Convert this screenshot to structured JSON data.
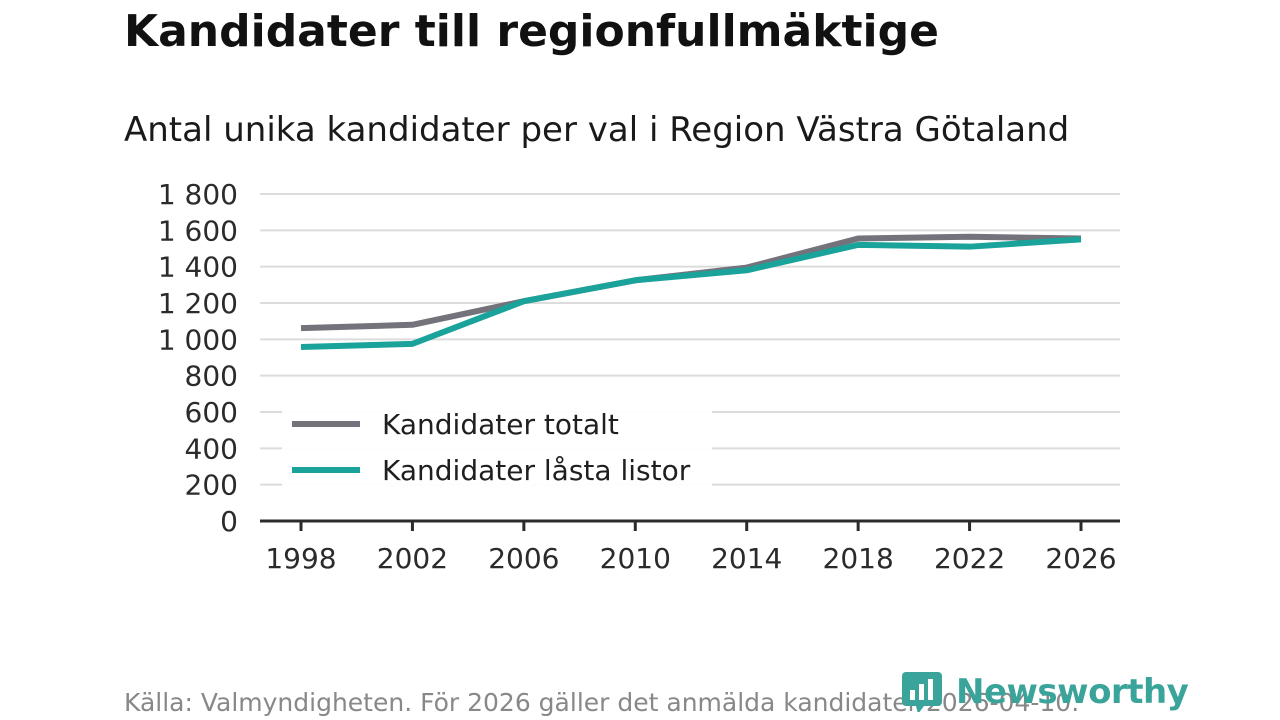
{
  "chart_data": {
    "type": "line",
    "title": "Kandidater till regionfullmäktige",
    "subtitle": "Antal unika kandidater per val i Region Västra Götaland",
    "x": [
      "1998",
      "2002",
      "2006",
      "2010",
      "2014",
      "2018",
      "2022",
      "2026"
    ],
    "ylim": [
      0,
      1800
    ],
    "yticks": [
      0,
      200,
      400,
      600,
      800,
      1000,
      1200,
      1400,
      1600,
      1800
    ],
    "ytick_labels": [
      "0",
      "200",
      "400",
      "600",
      "800",
      "1 000",
      "1 200",
      "1 400",
      "1 600",
      "1 800"
    ],
    "grid": true,
    "legend_position": "bottom-left",
    "series": [
      {
        "name": "Kandidater totalt",
        "color": "#74727a",
        "values": [
          1062,
          1080,
          1210,
          1325,
          1395,
          1555,
          1565,
          1555
        ]
      },
      {
        "name": "Kandidater låsta listor",
        "color": "#1aa39b",
        "values": [
          958,
          975,
          1210,
          1325,
          1380,
          1520,
          1510,
          1550
        ]
      }
    ]
  },
  "source": "Källa: Valmyndigheten. För 2026 gäller det anmälda kandidater 2026-04-10.",
  "logo": {
    "text": "Newsworthy",
    "color": "#3aa39a",
    "icon": "bar-chart-icon"
  }
}
